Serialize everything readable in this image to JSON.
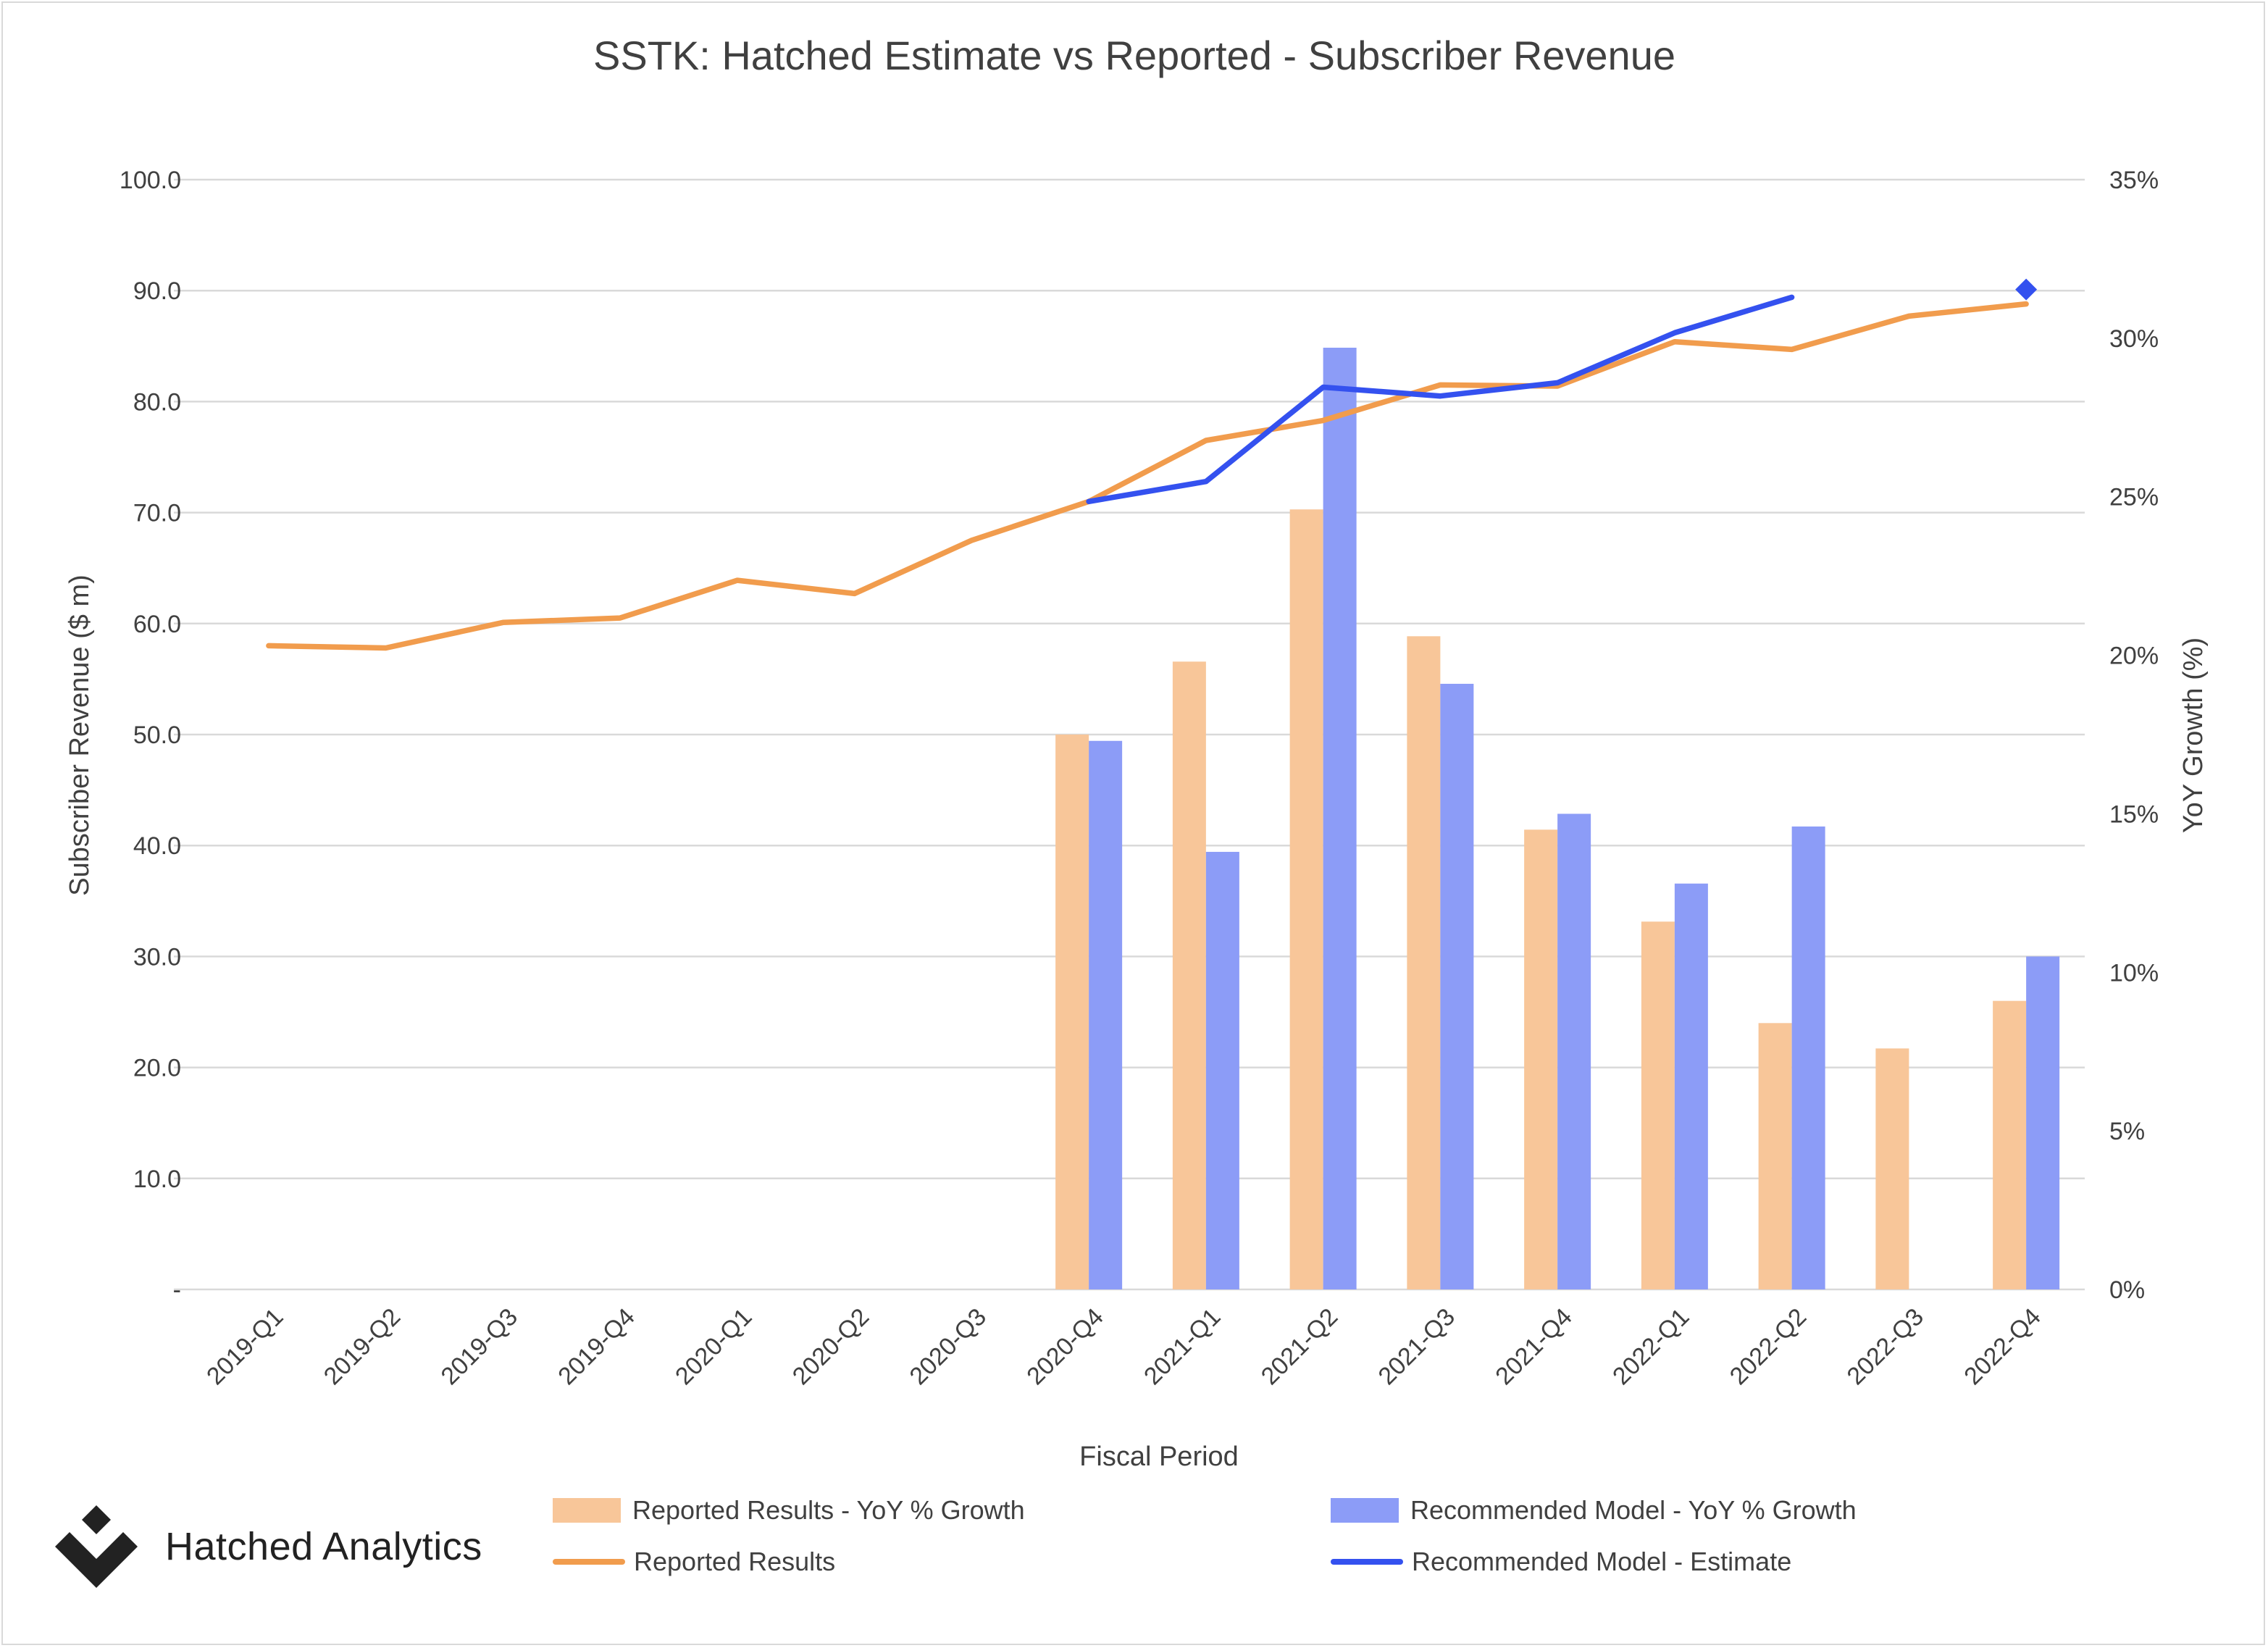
{
  "chart_data": {
    "type": "bar",
    "title": "SSTK: Hatched Estimate vs Reported - Subscriber Revenue",
    "xlabel": "Fiscal Period",
    "ylabel": "Subscriber Revenue ($ m)",
    "y2label": "YoY Growth (%)",
    "ylim": [
      0,
      100
    ],
    "y2lim": [
      0,
      35
    ],
    "y_ticks": [
      "-",
      "10.0",
      "20.0",
      "30.0",
      "40.0",
      "50.0",
      "60.0",
      "70.0",
      "80.0",
      "90.0",
      "100.0"
    ],
    "y2_ticks": [
      "0%",
      "5%",
      "10%",
      "15%",
      "20%",
      "25%",
      "30%",
      "35%"
    ],
    "grid": true,
    "legend_position": "bottom",
    "categories": [
      "2019-Q1",
      "2019-Q2",
      "2019-Q3",
      "2019-Q4",
      "2020-Q1",
      "2020-Q2",
      "2020-Q3",
      "2020-Q4",
      "2021-Q1",
      "2021-Q2",
      "2021-Q3",
      "2021-Q4",
      "2022-Q1",
      "2022-Q2",
      "2022-Q3",
      "2022-Q4"
    ],
    "series": [
      {
        "name": "Reported Results - YoY % Growth",
        "type": "bar",
        "axis": "right",
        "color": "#f8c699",
        "values": [
          null,
          null,
          null,
          null,
          null,
          null,
          null,
          17.5,
          19.8,
          24.6,
          20.6,
          14.5,
          11.6,
          8.4,
          7.6,
          9.1
        ]
      },
      {
        "name": "Recommended Model - YoY % Growth",
        "type": "bar",
        "axis": "right",
        "color": "#8c9cf7",
        "values": [
          null,
          null,
          null,
          null,
          null,
          null,
          null,
          17.3,
          13.8,
          29.7,
          19.1,
          15.0,
          12.8,
          14.6,
          null,
          10.5
        ]
      },
      {
        "name": "Reported Results",
        "type": "line",
        "axis": "left",
        "color": "#f19c4d",
        "values": [
          58.0,
          57.8,
          60.1,
          60.5,
          63.9,
          62.7,
          67.5,
          71.0,
          76.5,
          78.3,
          81.5,
          81.4,
          85.4,
          84.7,
          87.7,
          88.8
        ]
      },
      {
        "name": "Recommended Model - Estimate",
        "type": "line",
        "axis": "left",
        "color": "#3451ef",
        "values": [
          null,
          null,
          null,
          null,
          null,
          null,
          null,
          71.0,
          72.8,
          81.3,
          80.5,
          81.7,
          86.2,
          89.4,
          null,
          90.1
        ],
        "marker_only_points": [
          15
        ]
      }
    ]
  },
  "branding": {
    "logo_text": "Hatched Analytics",
    "logo_icon": "diamond-chevron-icon"
  }
}
